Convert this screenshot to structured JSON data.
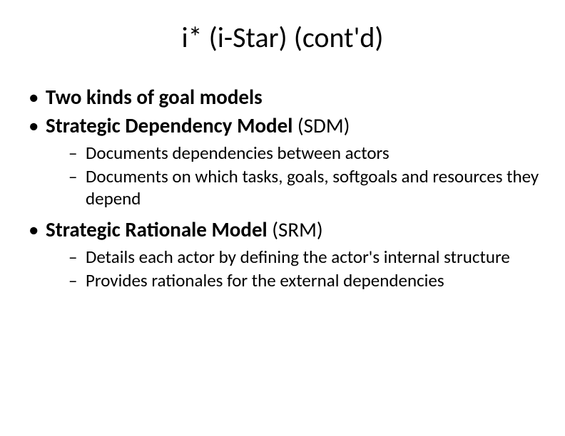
{
  "title": "i* (i-Star) (cont'd)",
  "bullets": {
    "b1": "Two kinds of goal models",
    "b2_bold": "Strategic Dependency Model",
    "b2_rest": " (SDM)",
    "b2_sub1": "Documents dependencies between actors",
    "b2_sub2": "Documents on which tasks, goals, softgoals and resources they depend",
    "b3_bold": "Strategic Rationale Model",
    "b3_rest": " (SRM)",
    "b3_sub1": "Details each actor by defining the actor's internal structure",
    "b3_sub2": "Provides rationales for the external dependencies"
  },
  "styling": {
    "background_color": "#ffffff",
    "text_color": "#000000",
    "font_family": "Calibri",
    "title_fontsize": 40,
    "level1_fontsize": 29,
    "level2_fontsize": 25,
    "slide_width": 792,
    "slide_height": 612
  }
}
